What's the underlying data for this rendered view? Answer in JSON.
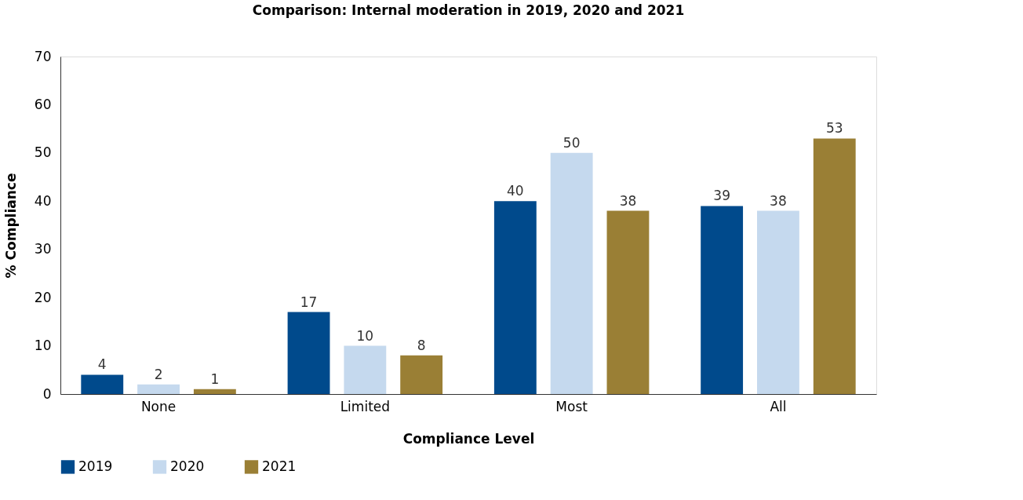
{
  "chart_data": {
    "type": "bar",
    "title": "Comparison: Internal moderation in 2019, 2020 and 2021",
    "xlabel": "Compliance Level",
    "ylabel": "% Compliance",
    "categories": [
      "None",
      "Limited",
      "Most",
      "All"
    ],
    "series": [
      {
        "name": "2019",
        "color": "#004a8c",
        "values": [
          4,
          17,
          40,
          39
        ]
      },
      {
        "name": "2020",
        "color": "#c5d9ee",
        "values": [
          2,
          10,
          50,
          38
        ]
      },
      {
        "name": "2021",
        "color": "#9a7f35",
        "values": [
          1,
          8,
          38,
          53
        ]
      }
    ],
    "ylim": [
      0,
      70
    ],
    "yticks": [
      0,
      10,
      20,
      30,
      40,
      50,
      60,
      70
    ],
    "grid": false,
    "legend": "bottom",
    "data_labels": true
  }
}
